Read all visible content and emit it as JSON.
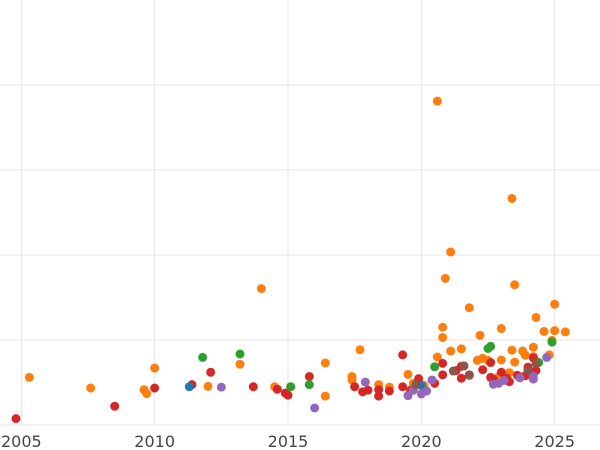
{
  "chart_data": {
    "type": "scatter",
    "title": "",
    "xlabel": "",
    "ylabel": "",
    "xlim": [
      2004.2,
      2026.7
    ],
    "ylim": [
      0,
      100
    ],
    "grid": true,
    "legend": "none",
    "x_ticks": [
      2005,
      2010,
      2015,
      2020,
      2025
    ],
    "x_tick_labels": [
      "2005",
      "2010",
      "2015",
      "2020",
      "2025"
    ],
    "y_ticks": [
      0,
      20,
      40,
      60,
      80
    ],
    "series": [
      {
        "color": "#ff7f0e",
        "points": [
          [
            2005.3,
            11.2
          ],
          [
            2007.6,
            8.7
          ],
          [
            2009.6,
            8.3
          ],
          [
            2009.7,
            7.4
          ],
          [
            2010.0,
            13.4
          ],
          [
            2012.0,
            9.1
          ],
          [
            2013.2,
            14.3
          ],
          [
            2014.0,
            32.1
          ],
          [
            2014.5,
            9.0
          ],
          [
            2015.1,
            9.0
          ],
          [
            2016.4,
            14.6
          ],
          [
            2016.4,
            6.8
          ],
          [
            2017.4,
            11.4
          ],
          [
            2017.4,
            10.6
          ],
          [
            2017.7,
            17.7
          ],
          [
            2018.4,
            9.5
          ],
          [
            2018.8,
            8.9
          ],
          [
            2019.5,
            11.9
          ],
          [
            2019.6,
            8.0
          ],
          [
            2019.7,
            9.8
          ],
          [
            2020.1,
            9.3
          ],
          [
            2020.6,
            16.0
          ],
          [
            2020.6,
            76.2
          ],
          [
            2020.8,
            23.0
          ],
          [
            2020.8,
            20.6
          ],
          [
            2020.9,
            34.5
          ],
          [
            2021.1,
            40.7
          ],
          [
            2021.1,
            17.4
          ],
          [
            2021.5,
            17.9
          ],
          [
            2021.8,
            27.6
          ],
          [
            2022.1,
            15.2
          ],
          [
            2022.2,
            21.1
          ],
          [
            2022.3,
            15.7
          ],
          [
            2022.5,
            15.2
          ],
          [
            2022.9,
            11.4
          ],
          [
            2023.0,
            22.7
          ],
          [
            2023.0,
            15.3
          ],
          [
            2023.3,
            12.3
          ],
          [
            2023.4,
            17.6
          ],
          [
            2023.4,
            53.3
          ],
          [
            2023.5,
            33.0
          ],
          [
            2023.5,
            14.8
          ],
          [
            2023.8,
            17.4
          ],
          [
            2023.9,
            16.4
          ],
          [
            2024.0,
            13.1
          ],
          [
            2024.2,
            16.1
          ],
          [
            2024.2,
            18.3
          ],
          [
            2024.3,
            25.3
          ],
          [
            2024.3,
            15.0
          ],
          [
            2024.6,
            22.0
          ],
          [
            2024.8,
            16.5
          ],
          [
            2025.0,
            22.2
          ],
          [
            2025.0,
            28.4
          ],
          [
            2025.4,
            21.9
          ],
          [
            2024.9,
            19.9
          ]
        ]
      },
      {
        "color": "#d62728",
        "points": [
          [
            2004.8,
            1.5
          ],
          [
            2008.5,
            4.4
          ],
          [
            2010.0,
            8.7
          ],
          [
            2011.4,
            9.5
          ],
          [
            2012.1,
            12.4
          ],
          [
            2013.7,
            9.0
          ],
          [
            2014.6,
            8.4
          ],
          [
            2014.9,
            7.5
          ],
          [
            2015.0,
            7.0
          ],
          [
            2015.8,
            11.4
          ],
          [
            2017.5,
            9.0
          ],
          [
            2017.8,
            7.8
          ],
          [
            2018.0,
            8.2
          ],
          [
            2018.4,
            8.3
          ],
          [
            2018.4,
            6.8
          ],
          [
            2018.8,
            8.0
          ],
          [
            2019.3,
            16.5
          ],
          [
            2019.3,
            9.0
          ],
          [
            2019.6,
            8.2
          ],
          [
            2019.9,
            10.9
          ],
          [
            2020.5,
            9.8
          ],
          [
            2020.8,
            11.8
          ],
          [
            2020.8,
            14.5
          ],
          [
            2021.3,
            12.8
          ],
          [
            2021.5,
            11.0
          ],
          [
            2021.5,
            13.8
          ],
          [
            2021.8,
            11.8
          ],
          [
            2022.3,
            13.0
          ],
          [
            2022.6,
            14.7
          ],
          [
            2022.6,
            11.2
          ],
          [
            2022.7,
            10.8
          ],
          [
            2023.0,
            12.4
          ],
          [
            2023.2,
            11.0
          ],
          [
            2023.3,
            10.2
          ],
          [
            2023.6,
            11.7
          ],
          [
            2023.9,
            11.6
          ],
          [
            2024.0,
            13.6
          ],
          [
            2024.1,
            12.3
          ],
          [
            2024.2,
            15.8
          ],
          [
            2024.3,
            12.8
          ]
        ]
      },
      {
        "color": "#2ca02c",
        "points": [
          [
            2011.8,
            15.9
          ],
          [
            2013.2,
            16.7
          ],
          [
            2015.1,
            9.0
          ],
          [
            2015.8,
            9.5
          ],
          [
            2020.5,
            13.7
          ],
          [
            2022.5,
            18.0
          ],
          [
            2022.6,
            18.5
          ],
          [
            2024.4,
            14.7
          ],
          [
            2024.9,
            19.5
          ]
        ]
      },
      {
        "color": "#1f77b4",
        "points": [
          [
            2011.3,
            9.0
          ],
          [
            2020.0,
            9.3
          ]
        ]
      },
      {
        "color": "#9467bd",
        "points": [
          [
            2012.5,
            8.9
          ],
          [
            2016.0,
            4.0
          ],
          [
            2017.9,
            10.1
          ],
          [
            2019.5,
            6.9
          ],
          [
            2019.7,
            8.2
          ],
          [
            2020.0,
            7.3
          ],
          [
            2020.2,
            8.0
          ],
          [
            2020.4,
            10.6
          ],
          [
            2022.7,
            9.6
          ],
          [
            2022.9,
            9.8
          ],
          [
            2023.1,
            10.5
          ],
          [
            2023.7,
            11.1
          ],
          [
            2024.2,
            11.5
          ],
          [
            2024.2,
            10.8
          ],
          [
            2024.7,
            15.9
          ]
        ]
      },
      {
        "color": "#8c564b",
        "points": [
          [
            2019.8,
            9.5
          ],
          [
            2021.2,
            12.7
          ],
          [
            2021.6,
            13.9
          ],
          [
            2021.8,
            11.7
          ],
          [
            2024.0,
            12.9
          ],
          [
            2024.3,
            14.5
          ]
        ]
      }
    ]
  }
}
